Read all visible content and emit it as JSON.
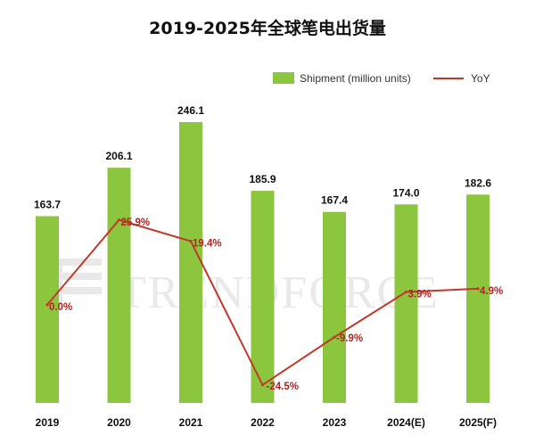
{
  "chart_data": {
    "type": "bar+line",
    "title": "2019-2025年全球笔电出货量",
    "categories": [
      "2019",
      "2020",
      "2021",
      "2022",
      "2023",
      "2024(E)",
      "2025(F)"
    ],
    "series": [
      {
        "name": "Shipment (million units)",
        "type": "bar",
        "values": [
          163.7,
          206.1,
          246.1,
          185.9,
          167.4,
          174.0,
          182.6
        ],
        "value_labels": [
          "163.7",
          "206.1",
          "246.1",
          "185.9",
          "167.4",
          "174.0",
          "182.6"
        ]
      },
      {
        "name": "YoY",
        "type": "line",
        "values": [
          0.0,
          25.9,
          19.4,
          -24.5,
          -9.9,
          3.9,
          4.9
        ],
        "value_labels": [
          "0.0%",
          "25.9%",
          "19.4%",
          "-24.5%",
          "-9.9%",
          "3.9%",
          "4.9%"
        ]
      }
    ],
    "legend": "top-right",
    "ylim_bars": [
      0,
      275
    ],
    "ylim_yoy": [
      -30,
      40
    ],
    "colors": {
      "bar": "#8cc63f",
      "line": "#c0392b",
      "yoy_label": "#b22222"
    }
  },
  "watermark": {
    "text": "TRENDFORCE"
  }
}
